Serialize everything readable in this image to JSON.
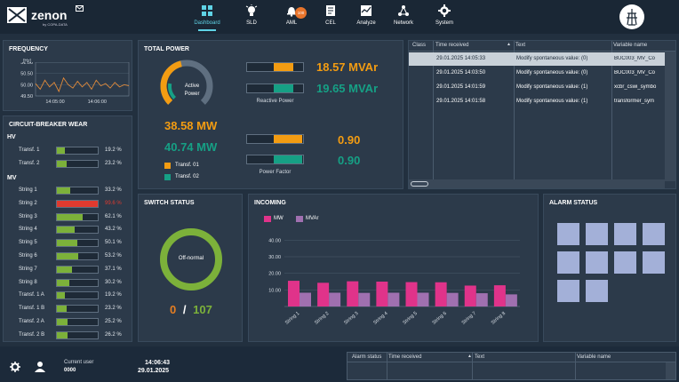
{
  "app": {
    "name": "zenon",
    "subtitle": "by COPA-DATA"
  },
  "nav": {
    "items": [
      {
        "label": "Dashboard",
        "icon": "dashboard-icon",
        "active": true
      },
      {
        "label": "SLD",
        "icon": "lightbulb-icon"
      },
      {
        "label": "AML",
        "icon": "bell-icon",
        "badge": "100"
      },
      {
        "label": "CEL",
        "icon": "document-icon"
      },
      {
        "label": "Analyze",
        "icon": "chart-icon"
      },
      {
        "label": "Network",
        "icon": "network-icon"
      },
      {
        "label": "System",
        "icon": "gear-icon"
      }
    ]
  },
  "frequency": {
    "title": "FREQUENCY",
    "unit": "[Hz]",
    "yticks": [
      "51.00",
      "50.50",
      "50.00",
      "49.50"
    ],
    "xticks": [
      "14:05:00",
      "14:06:00"
    ],
    "chart_data": {
      "type": "line",
      "x": [
        0,
        5,
        10,
        15,
        20,
        25,
        30,
        35,
        40,
        45,
        50,
        55,
        60,
        65,
        70,
        75,
        80,
        85,
        90,
        95,
        100
      ],
      "series": [
        {
          "values": [
            50.05,
            49.8,
            50.2,
            49.9,
            50.1,
            49.7,
            50.3,
            50.0,
            49.85,
            50.15,
            49.9,
            50.1,
            49.8,
            50.2,
            49.95,
            50.05,
            49.85,
            50.1,
            49.9,
            50.0,
            49.95
          ]
        }
      ],
      "ylim": [
        49.5,
        51.0
      ]
    }
  },
  "cbw": {
    "title": "CIRCUIT-BREAKER WEAR",
    "hv": "HV",
    "mv": "MV",
    "hv_rows": [
      {
        "label": "Transf. 1",
        "value": 19.2,
        "text": "19.2 %"
      },
      {
        "label": "Transf. 2",
        "value": 23.2,
        "text": "23.2 %"
      }
    ],
    "mv_rows": [
      {
        "label": "String 1",
        "value": 33.2,
        "text": "33.2 %"
      },
      {
        "label": "String 2",
        "value": 99.6,
        "text": "99.6 %",
        "alert": true
      },
      {
        "label": "String 3",
        "value": 62.1,
        "text": "62.1 %"
      },
      {
        "label": "String 4",
        "value": 43.2,
        "text": "43.2 %"
      },
      {
        "label": "String 5",
        "value": 50.1,
        "text": "50.1 %"
      },
      {
        "label": "String 6",
        "value": 53.2,
        "text": "53.2 %"
      },
      {
        "label": "String 7",
        "value": 37.1,
        "text": "37.1 %"
      },
      {
        "label": "String 8",
        "value": 30.2,
        "text": "30.2 %"
      },
      {
        "label": "Transf. 1 A",
        "value": 19.2,
        "text": "19.2 %"
      },
      {
        "label": "Transf. 1 B",
        "value": 23.2,
        "text": "23.2 %"
      },
      {
        "label": "Transf. 2 A",
        "value": 25.2,
        "text": "25.2 %"
      },
      {
        "label": "Transf. 2 B",
        "value": 26.2,
        "text": "26.2 %"
      }
    ]
  },
  "total_power": {
    "title": "TOTAL POWER",
    "gauge_label": "Active Power",
    "gauge_fraction_t1": 0.45,
    "gauge_fraction_t2": 0.2,
    "mw1": "38.58 MW",
    "mw2": "40.74 MW",
    "legend": [
      "Transf. 01",
      "Transf. 02"
    ],
    "reactive_label": "Reactive Power",
    "mvar1": "18.57 MVAr",
    "mvar2": "19.65 MVAr",
    "reactive_fill": [
      0.35,
      0.35
    ],
    "pf_label": "Power Factor",
    "pf1": "0.90",
    "pf2": "0.90",
    "pf_fill": [
      0.5,
      0.5
    ],
    "colors": {
      "t1": "#f39c12",
      "t2": "#16a085"
    }
  },
  "events": {
    "columns": [
      "Class",
      "Time received",
      "Text",
      "Variable name"
    ],
    "rows": [
      {
        "time": "29.01.2025 14:05:33",
        "text": "Modify spontaneous value: (0)",
        "var": "BUC003_MV_Co"
      },
      {
        "time": "29.01.2025 14:03:50",
        "text": "Modify spontaneous value: (0)",
        "var": "BUC003_MV_Co"
      },
      {
        "time": "29.01.2025 14:01:59",
        "text": "Modify spontaneous value: (1)",
        "var": "xcbr_cswi_symbo"
      },
      {
        "time": "29.01.2025 14:01:58",
        "text": "Modify spontaneous value: (1)",
        "var": "transformer_sym"
      }
    ]
  },
  "switch_status": {
    "title": "SWITCH STATUS",
    "ring_label": "Off-normal",
    "count_off": "0",
    "sep": "/",
    "count_total": "107"
  },
  "incoming": {
    "title": "INCOMING",
    "legend": [
      "MW",
      "MVAr"
    ],
    "yticks": [
      "40.00",
      "30.00",
      "20.00",
      "10.00"
    ],
    "chart_data": {
      "type": "bar",
      "categories": [
        "String 1",
        "String 2",
        "String 3",
        "String 4",
        "String 5",
        "String 6",
        "String 7",
        "String 8"
      ],
      "series": [
        {
          "name": "MW",
          "values": [
            15.5,
            14.3,
            15.2,
            15.0,
            14.7,
            14.6,
            12.6,
            12.8
          ]
        },
        {
          "name": "MVAr",
          "values": [
            8.3,
            8.3,
            8.2,
            8.3,
            8.3,
            8.2,
            8.0,
            7.3
          ]
        }
      ],
      "ylim": [
        0,
        45
      ],
      "colors": [
        "#e0338a",
        "#a070b0"
      ]
    }
  },
  "alarm_status": {
    "title": "ALARM STATUS",
    "tiles": 10
  },
  "bottom": {
    "user_label": "Current user",
    "user_value": "0000",
    "time": "14:06:43",
    "date": "29.01.2025",
    "alarm_columns": [
      "Alarm status",
      "Time received",
      "Text",
      "Variable name"
    ]
  }
}
